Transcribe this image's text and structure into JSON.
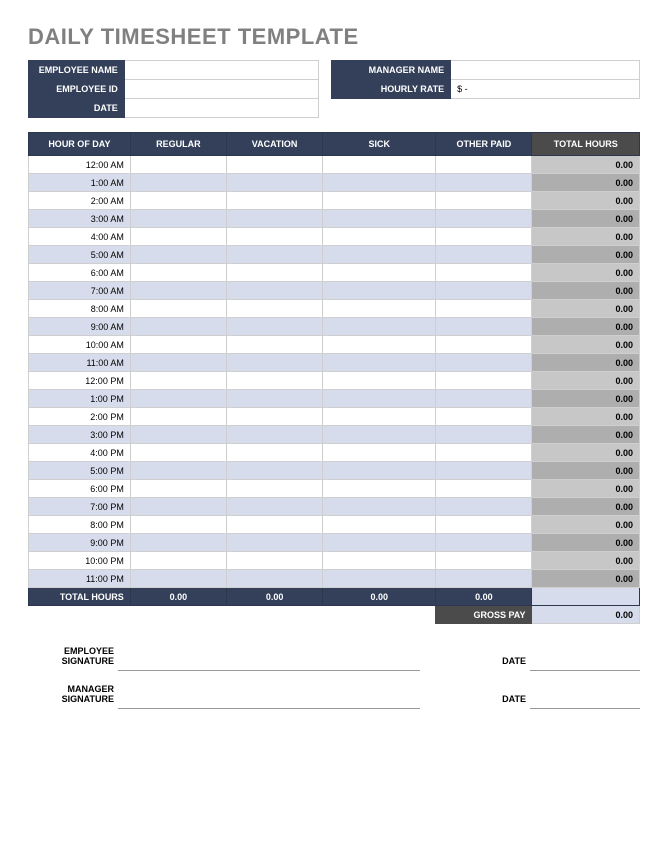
{
  "title": "DAILY TIMESHEET TEMPLATE",
  "meta": {
    "employee_name_label": "EMPLOYEE NAME",
    "employee_name_value": "",
    "manager_name_label": "MANAGER NAME",
    "manager_name_value": "",
    "employee_id_label": "EMPLOYEE ID",
    "employee_id_value": "",
    "hourly_rate_label": "HOURLY RATE",
    "hourly_rate_value": "$               -",
    "date_label": "DATE",
    "date_value": ""
  },
  "columns": {
    "hour": "HOUR OF DAY",
    "regular": "REGULAR",
    "vacation": "VACATION",
    "sick": "SICK",
    "other": "OTHER PAID",
    "total": "TOTAL HOURS"
  },
  "rows": [
    {
      "hour": "12:00 AM",
      "regular": "",
      "vacation": "",
      "sick": "",
      "other": "",
      "total": "0.00"
    },
    {
      "hour": "1:00 AM",
      "regular": "",
      "vacation": "",
      "sick": "",
      "other": "",
      "total": "0.00"
    },
    {
      "hour": "2:00 AM",
      "regular": "",
      "vacation": "",
      "sick": "",
      "other": "",
      "total": "0.00"
    },
    {
      "hour": "3:00 AM",
      "regular": "",
      "vacation": "",
      "sick": "",
      "other": "",
      "total": "0.00"
    },
    {
      "hour": "4:00 AM",
      "regular": "",
      "vacation": "",
      "sick": "",
      "other": "",
      "total": "0.00"
    },
    {
      "hour": "5:00 AM",
      "regular": "",
      "vacation": "",
      "sick": "",
      "other": "",
      "total": "0.00"
    },
    {
      "hour": "6:00 AM",
      "regular": "",
      "vacation": "",
      "sick": "",
      "other": "",
      "total": "0.00"
    },
    {
      "hour": "7:00 AM",
      "regular": "",
      "vacation": "",
      "sick": "",
      "other": "",
      "total": "0.00"
    },
    {
      "hour": "8:00 AM",
      "regular": "",
      "vacation": "",
      "sick": "",
      "other": "",
      "total": "0.00"
    },
    {
      "hour": "9:00 AM",
      "regular": "",
      "vacation": "",
      "sick": "",
      "other": "",
      "total": "0.00"
    },
    {
      "hour": "10:00 AM",
      "regular": "",
      "vacation": "",
      "sick": "",
      "other": "",
      "total": "0.00"
    },
    {
      "hour": "11:00 AM",
      "regular": "",
      "vacation": "",
      "sick": "",
      "other": "",
      "total": "0.00"
    },
    {
      "hour": "12:00 PM",
      "regular": "",
      "vacation": "",
      "sick": "",
      "other": "",
      "total": "0.00"
    },
    {
      "hour": "1:00 PM",
      "regular": "",
      "vacation": "",
      "sick": "",
      "other": "",
      "total": "0.00"
    },
    {
      "hour": "2:00 PM",
      "regular": "",
      "vacation": "",
      "sick": "",
      "other": "",
      "total": "0.00"
    },
    {
      "hour": "3:00 PM",
      "regular": "",
      "vacation": "",
      "sick": "",
      "other": "",
      "total": "0.00"
    },
    {
      "hour": "4:00 PM",
      "regular": "",
      "vacation": "",
      "sick": "",
      "other": "",
      "total": "0.00"
    },
    {
      "hour": "5:00 PM",
      "regular": "",
      "vacation": "",
      "sick": "",
      "other": "",
      "total": "0.00"
    },
    {
      "hour": "6:00 PM",
      "regular": "",
      "vacation": "",
      "sick": "",
      "other": "",
      "total": "0.00"
    },
    {
      "hour": "7:00 PM",
      "regular": "",
      "vacation": "",
      "sick": "",
      "other": "",
      "total": "0.00"
    },
    {
      "hour": "8:00 PM",
      "regular": "",
      "vacation": "",
      "sick": "",
      "other": "",
      "total": "0.00"
    },
    {
      "hour": "9:00 PM",
      "regular": "",
      "vacation": "",
      "sick": "",
      "other": "",
      "total": "0.00"
    },
    {
      "hour": "10:00 PM",
      "regular": "",
      "vacation": "",
      "sick": "",
      "other": "",
      "total": "0.00"
    },
    {
      "hour": "11:00 PM",
      "regular": "",
      "vacation": "",
      "sick": "",
      "other": "",
      "total": "0.00"
    }
  ],
  "totals": {
    "label": "TOTAL HOURS",
    "regular": "0.00",
    "vacation": "0.00",
    "sick": "0.00",
    "other": "0.00",
    "total": ""
  },
  "gross": {
    "label": "GROSS PAY",
    "value": "0.00"
  },
  "signatures": {
    "employee_label": "EMPLOYEE SIGNATURE",
    "manager_label": "MANAGER SIGNATURE",
    "date_label": "DATE"
  },
  "style": {
    "header_bg": "#34405a",
    "header_fg": "#ffffff",
    "total_header_bg": "#4b4b4b",
    "row_even_bg": "#d6dceb",
    "row_odd_bg": "#ffffff",
    "total_cell_odd_bg": "#c7c7c7",
    "total_cell_even_bg": "#aeaeae",
    "border_color": "#cfcfcf",
    "title_color": "#808080",
    "title_fontsize": 22,
    "body_fontsize": 9
  }
}
